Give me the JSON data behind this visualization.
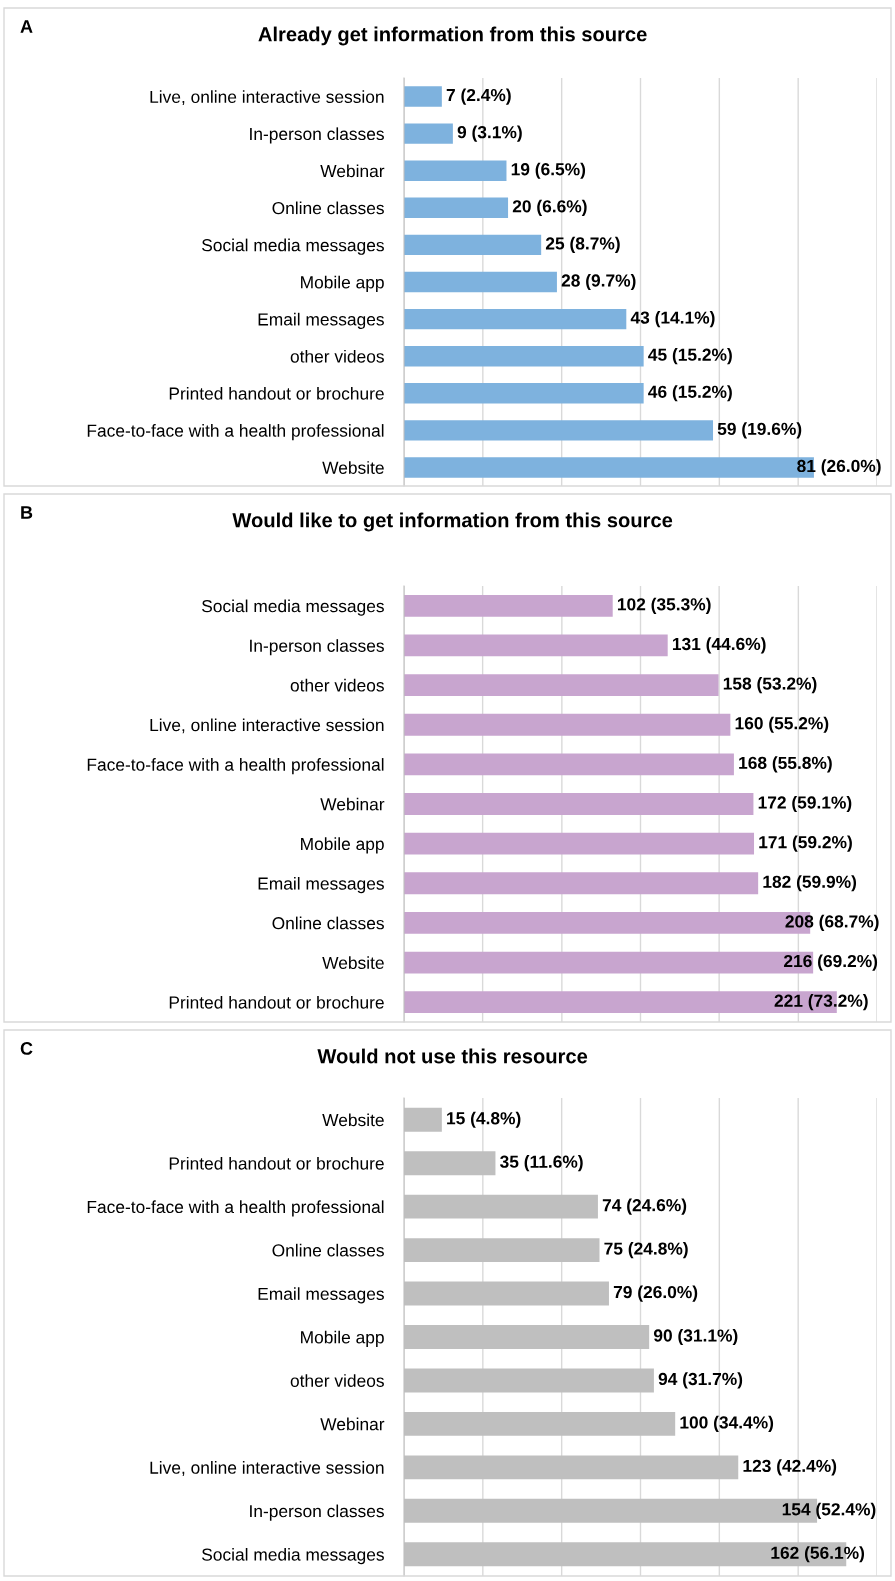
{
  "chart_data": [
    {
      "type": "bar",
      "orientation": "horizontal",
      "title": "Already get information from this source",
      "annotations": [
        "A"
      ],
      "categories": [
        "Live, online interactive session",
        "In-person classes",
        "Webinar",
        "Online classes",
        "Social media messages",
        "Mobile app",
        "Email messages",
        "other videos",
        "Printed handout or brochure",
        "Face-to-face with a health professional",
        "Website"
      ],
      "values": [
        2.4,
        3.1,
        6.5,
        6.6,
        8.7,
        9.7,
        14.1,
        15.2,
        15.2,
        19.6,
        26.0
      ],
      "value_labels": [
        "7 (2.4%)",
        "9 (3.1%)",
        "19 (6.5%)",
        "20 (6.6%)",
        "25 (8.7%)",
        "28 (9.7%)",
        "43 (14.1%)",
        "45 (15.2%)",
        "46 (15.2%)",
        "59 (19.6%)",
        "81 (26.0%)"
      ],
      "color": "#7eb2de",
      "xlim": [
        0,
        30
      ],
      "xticks": [
        {
          "value": 0,
          "label": null
        },
        {
          "value": 5,
          "label": null
        },
        {
          "value": 10,
          "label": null
        },
        {
          "value": 15,
          "label": null
        },
        {
          "value": 20,
          "label": null
        },
        {
          "value": 25,
          "label": null
        },
        {
          "value": 30,
          "label": null
        }
      ],
      "grid": "x",
      "tick_labels": "y"
    },
    {
      "type": "bar",
      "orientation": "horizontal",
      "title": "Would like to get information from this source",
      "annotations": [
        "B"
      ],
      "categories": [
        "Social media messages",
        "In-person classes",
        "other videos",
        "Live, online interactive session",
        "Face-to-face with a health professional",
        "Webinar",
        "Mobile app",
        "Email messages",
        "Online classes",
        "Website",
        "Printed handout or brochure"
      ],
      "values": [
        35.3,
        44.6,
        53.2,
        55.2,
        55.8,
        59.1,
        59.2,
        59.9,
        68.7,
        69.2,
        73.2
      ],
      "value_labels": [
        "102 (35.3%)",
        "131 (44.6%)",
        "158 (53.2%)",
        "160 (55.2%)",
        "168 (55.8%)",
        "172 (59.1%)",
        "171 (59.2%)",
        "182 (59.9%)",
        "208 (68.7%)",
        "216 (69.2%)",
        "221 (73.2%)"
      ],
      "color": "#c8a5cf",
      "xlim": [
        0,
        80
      ],
      "xticks": [
        {
          "value": 0,
          "label": null
        },
        {
          "value": 13.3,
          "label": null
        },
        {
          "value": 26.7,
          "label": null
        },
        {
          "value": 40,
          "label": null
        },
        {
          "value": 53.3,
          "label": null
        },
        {
          "value": 66.7,
          "label": null
        },
        {
          "value": 80,
          "label": null
        }
      ],
      "grid": "x",
      "tick_labels": "y"
    },
    {
      "type": "bar",
      "orientation": "horizontal",
      "title": "Would not use this resource",
      "annotations": [
        "C"
      ],
      "categories": [
        "Website",
        "Printed handout or brochure",
        "Face-to-face with a health professional",
        "Online classes",
        "Email messages",
        "Mobile app",
        "other videos",
        "Webinar",
        "Live, online interactive session",
        "In-person classes",
        "Social media messages"
      ],
      "values": [
        4.8,
        11.6,
        24.6,
        24.8,
        26.0,
        31.1,
        31.7,
        34.4,
        42.4,
        52.4,
        56.1
      ],
      "value_labels": [
        "15 (4.8%)",
        "35 (11.6%)",
        "74 (24.6%)",
        "75 (24.8%)",
        "79 (26.0%)",
        "90 (31.1%)",
        "94 (31.7%)",
        "100 (34.4%)",
        "123 (42.4%)",
        "154 (52.4%)",
        "162 (56.1%)"
      ],
      "color": "#bfbfbf",
      "xlim": [
        0,
        60
      ],
      "xticks": [
        {
          "value": 0,
          "label": null
        },
        {
          "value": 10,
          "label": null
        },
        {
          "value": 20,
          "label": null
        },
        {
          "value": 30,
          "label": null
        },
        {
          "value": 40,
          "label": null
        },
        {
          "value": 50,
          "label": null
        },
        {
          "value": 60,
          "label": null
        }
      ],
      "grid": "x",
      "tick_labels": "y"
    }
  ]
}
